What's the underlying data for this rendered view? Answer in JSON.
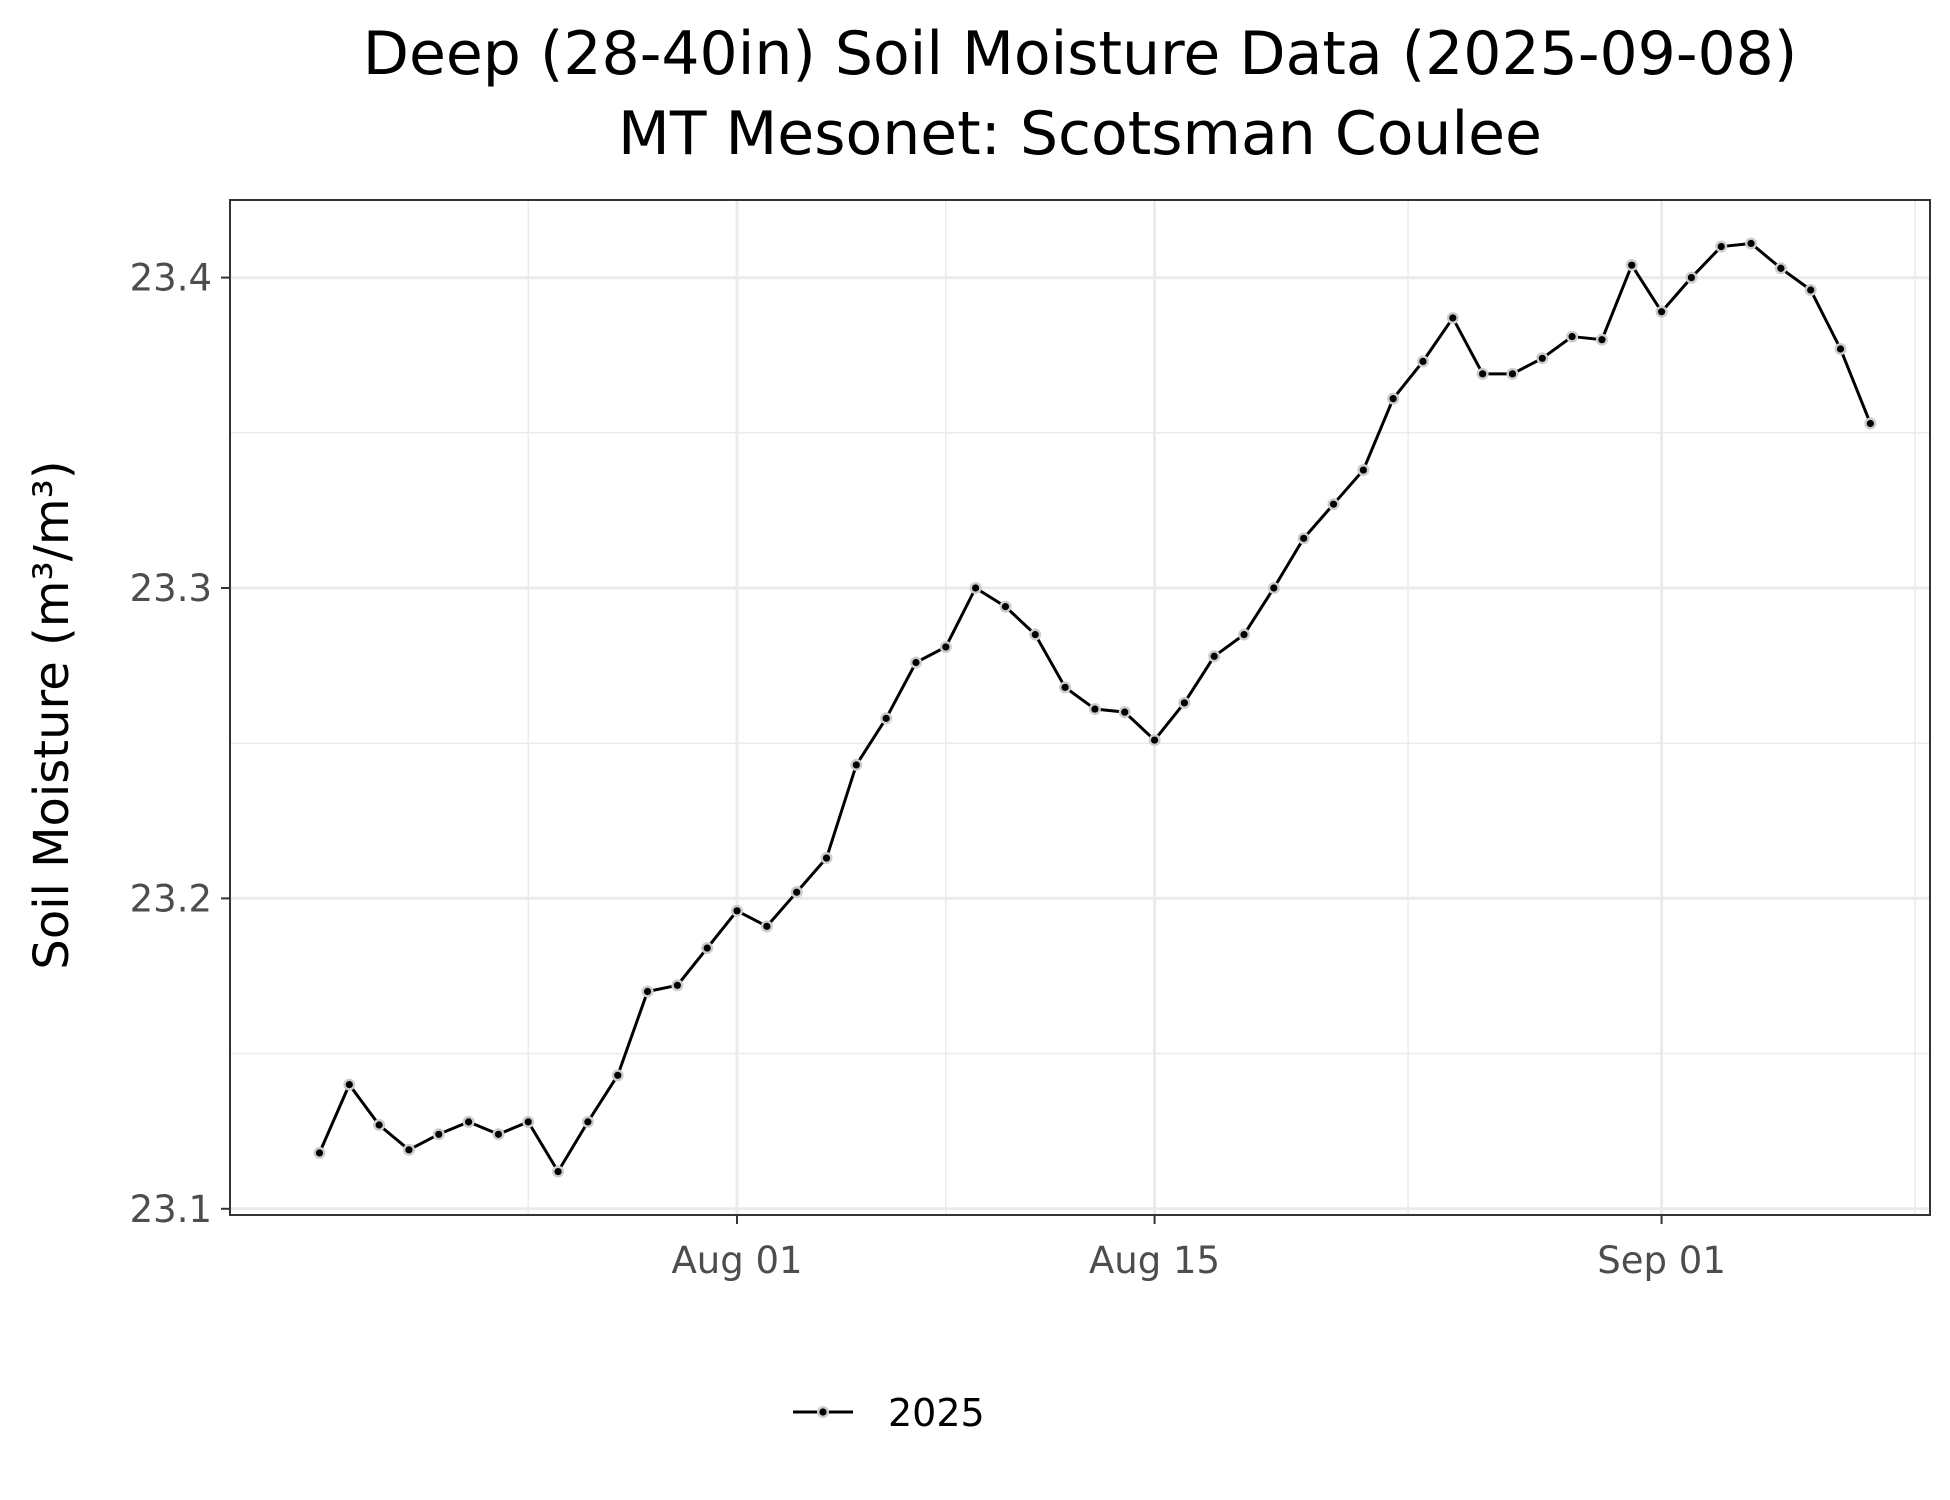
{
  "chart_data": {
    "type": "line",
    "title": "Deep (28-40in) Soil Moisture Data (2025-09-08)",
    "subtitle": "MT Mesonet: Scotsman Coulee",
    "xlabel": "",
    "ylabel": "Soil Moisture (m³/m³)",
    "x_start": "2025-07-18",
    "x_end": "2025-09-08",
    "xlim": [
      "2025-07-15",
      "2025-09-10"
    ],
    "ylim": [
      23.098,
      23.425
    ],
    "x_ticks": [
      {
        "date": "2025-08-01",
        "label": "Aug 01"
      },
      {
        "date": "2025-08-15",
        "label": "Aug 15"
      },
      {
        "date": "2025-09-01",
        "label": "Sep 01"
      }
    ],
    "y_ticks": [
      {
        "value": 23.1,
        "label": "23.1"
      },
      {
        "value": 23.2,
        "label": "23.2"
      },
      {
        "value": 23.3,
        "label": "23.3"
      },
      {
        "value": 23.4,
        "label": "23.4"
      }
    ],
    "grid": true,
    "legend_position": "bottom",
    "series": [
      {
        "name": "2025",
        "color": "#000000",
        "values": [
          23.118,
          23.14,
          23.127,
          23.119,
          23.124,
          23.128,
          23.124,
          23.128,
          23.112,
          23.128,
          23.143,
          23.17,
          23.172,
          23.184,
          23.196,
          23.191,
          23.202,
          23.213,
          23.243,
          23.258,
          23.276,
          23.281,
          23.3,
          23.294,
          23.285,
          23.268,
          23.261,
          23.26,
          23.251,
          23.263,
          23.278,
          23.285,
          23.3,
          23.316,
          23.327,
          23.338,
          23.361,
          23.373,
          23.387,
          23.369,
          23.369,
          23.374,
          23.381,
          23.38,
          23.404,
          23.389,
          23.4,
          23.41,
          23.411,
          23.403,
          23.396,
          23.377,
          23.353
        ]
      }
    ]
  }
}
